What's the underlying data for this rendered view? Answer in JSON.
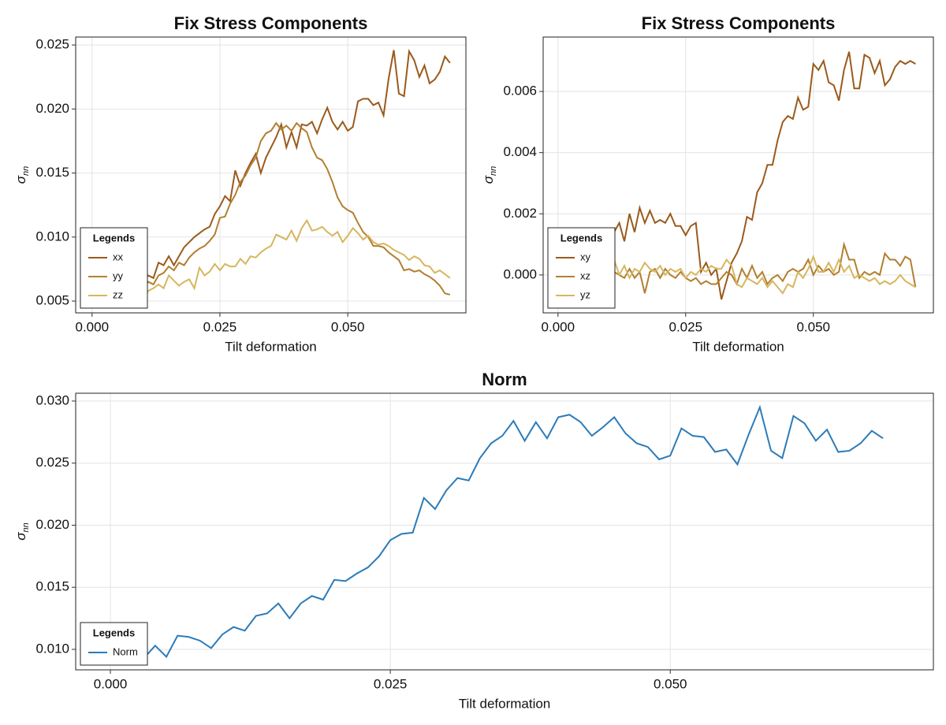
{
  "chart_data": [
    {
      "type": "line",
      "title": "Fix Stress Components",
      "xlabel": "Tilt deformation",
      "ylabel": {
        "symbol": "σ",
        "subscript": "nn"
      },
      "x": [
        0.008,
        0.009,
        0.01,
        0.011,
        0.012,
        0.013,
        0.014,
        0.015,
        0.016,
        0.017,
        0.018,
        0.019,
        0.02,
        0.021,
        0.022,
        0.023,
        0.024,
        0.025,
        0.026,
        0.027,
        0.028,
        0.029,
        0.03,
        0.031,
        0.032,
        0.033,
        0.034,
        0.035,
        0.036,
        0.037,
        0.038,
        0.039,
        0.04,
        0.041,
        0.042,
        0.043,
        0.044,
        0.045,
        0.046,
        0.047,
        0.048,
        0.049,
        0.05,
        0.051,
        0.052,
        0.053,
        0.054,
        0.055,
        0.056,
        0.057,
        0.058,
        0.059,
        0.06,
        0.061,
        0.062,
        0.063,
        0.064,
        0.065,
        0.066,
        0.067,
        0.068,
        0.069,
        0.07
      ],
      "series": [
        {
          "name": "xx",
          "color": "#9a5a1c",
          "values": [
            0.0062,
            0.0058,
            0.0066,
            0.007,
            0.0068,
            0.008,
            0.0078,
            0.0085,
            0.0078,
            0.0085,
            0.0092,
            0.0096,
            0.01,
            0.0103,
            0.0106,
            0.0108,
            0.0118,
            0.0124,
            0.0132,
            0.0128,
            0.0152,
            0.014,
            0.015,
            0.0158,
            0.0165,
            0.015,
            0.0162,
            0.017,
            0.0178,
            0.0188,
            0.017,
            0.0182,
            0.017,
            0.0188,
            0.0187,
            0.019,
            0.0181,
            0.0192,
            0.0201,
            0.019,
            0.0184,
            0.019,
            0.0183,
            0.0186,
            0.0206,
            0.0208,
            0.0208,
            0.0203,
            0.0205,
            0.0195,
            0.0224,
            0.0246,
            0.0212,
            0.021,
            0.0245,
            0.0238,
            0.0225,
            0.0234,
            0.022,
            0.0223,
            0.0229,
            0.0241,
            0.0236
          ]
        },
        {
          "name": "yy",
          "color": "#b27f30",
          "values": [
            0.006,
            0.0063,
            0.006,
            0.0065,
            0.0063,
            0.007,
            0.0072,
            0.0077,
            0.0074,
            0.008,
            0.0078,
            0.0084,
            0.0088,
            0.0091,
            0.0093,
            0.0097,
            0.0102,
            0.0115,
            0.0116,
            0.0126,
            0.0133,
            0.0143,
            0.0148,
            0.0156,
            0.0162,
            0.0175,
            0.0181,
            0.0183,
            0.0189,
            0.0184,
            0.0187,
            0.0183,
            0.0189,
            0.0185,
            0.0182,
            0.017,
            0.0162,
            0.016,
            0.0153,
            0.0143,
            0.0131,
            0.0124,
            0.0121,
            0.0119,
            0.0111,
            0.0104,
            0.01,
            0.0093,
            0.0093,
            0.0092,
            0.0088,
            0.0085,
            0.0082,
            0.0074,
            0.0075,
            0.0073,
            0.0074,
            0.0071,
            0.0069,
            0.0066,
            0.0062,
            0.0056,
            0.0055
          ]
        },
        {
          "name": "zz",
          "color": "#d6b75e",
          "values": [
            0.0063,
            0.0056,
            0.005,
            0.0058,
            0.006,
            0.0063,
            0.006,
            0.007,
            0.0066,
            0.0062,
            0.0065,
            0.0067,
            0.006,
            0.0076,
            0.007,
            0.0073,
            0.0079,
            0.0074,
            0.0079,
            0.0077,
            0.0077,
            0.0083,
            0.0079,
            0.0085,
            0.0084,
            0.0088,
            0.0091,
            0.0093,
            0.0102,
            0.01,
            0.0098,
            0.0105,
            0.0097,
            0.0107,
            0.0113,
            0.0105,
            0.0106,
            0.0108,
            0.0104,
            0.0101,
            0.0104,
            0.0096,
            0.0101,
            0.0107,
            0.0103,
            0.0098,
            0.0101,
            0.0096,
            0.0094,
            0.0095,
            0.0093,
            0.009,
            0.0088,
            0.0086,
            0.0082,
            0.0085,
            0.0083,
            0.0078,
            0.0077,
            0.0072,
            0.0074,
            0.0071,
            0.0068
          ]
        }
      ],
      "xlim": [
        -0.0032,
        0.0731
      ],
      "ylim": [
        0.00408,
        0.02562
      ],
      "xticks": [
        {
          "value": 0,
          "label": "0.000"
        },
        0.025,
        {
          "value": 0.05,
          "label": "0.050"
        }
      ],
      "yticks": [
        0.005,
        {
          "value": 0.01,
          "label": "0.010"
        },
        0.015,
        {
          "value": 0.02,
          "label": "0.020"
        },
        0.025
      ],
      "grid": true,
      "legend": {
        "title": "Legends",
        "position": "lower left"
      }
    },
    {
      "type": "line",
      "title": "Fix Stress Components",
      "xlabel": "Tilt deformation",
      "ylabel": {
        "symbol": "σ",
        "subscript": "nn"
      },
      "x": [
        0.008,
        0.009,
        0.01,
        0.011,
        0.012,
        0.013,
        0.014,
        0.015,
        0.016,
        0.017,
        0.018,
        0.019,
        0.02,
        0.021,
        0.022,
        0.023,
        0.024,
        0.025,
        0.026,
        0.027,
        0.028,
        0.029,
        0.03,
        0.031,
        0.032,
        0.033,
        0.034,
        0.035,
        0.036,
        0.037,
        0.038,
        0.039,
        0.04,
        0.041,
        0.042,
        0.043,
        0.044,
        0.045,
        0.046,
        0.047,
        0.048,
        0.049,
        0.05,
        0.051,
        0.052,
        0.053,
        0.054,
        0.055,
        0.056,
        0.057,
        0.058,
        0.059,
        0.06,
        0.061,
        0.062,
        0.063,
        0.064,
        0.065,
        0.066,
        0.067,
        0.068,
        0.069,
        0.07
      ],
      "series": [
        {
          "name": "xy",
          "color": "#9a5a1c",
          "values": [
            0.001,
            0.0012,
            0.0012,
            0.0014,
            0.0017,
            0.0011,
            0.002,
            0.0014,
            0.0022,
            0.0017,
            0.0021,
            0.0017,
            0.0018,
            0.0017,
            0.002,
            0.0016,
            0.0016,
            0.0013,
            0.0016,
            0.0017,
            0.0001,
            0.0004,
            0.0,
            0.0002,
            -0.0008,
            -0.0002,
            0.0004,
            0.0007,
            0.0011,
            0.0019,
            0.0018,
            0.0027,
            0.003,
            0.0036,
            0.0036,
            0.0044,
            0.005,
            0.0052,
            0.0051,
            0.0058,
            0.0054,
            0.0055,
            0.0069,
            0.0067,
            0.007,
            0.0063,
            0.0062,
            0.0057,
            0.0067,
            0.0073,
            0.0061,
            0.0061,
            0.0072,
            0.0071,
            0.0066,
            0.007,
            0.0062,
            0.0064,
            0.0068,
            0.007,
            0.0069,
            0.007,
            0.0069
          ]
        },
        {
          "name": "xz",
          "color": "#b27f30",
          "values": [
            0.0001,
            -0.0001,
            0.0001,
            0.0001,
            0.0,
            -0.0001,
            0.0002,
            -0.0001,
            0.0001,
            -0.0006,
            0.0001,
            0.0002,
            -0.0001,
            0.0002,
            0.0,
            -0.0001,
            0.0001,
            -0.0001,
            -0.0002,
            -0.0001,
            -0.0003,
            -0.0002,
            -0.0003,
            -0.0003,
            -0.0001,
            0.0001,
            0.0,
            -0.0003,
            0.0002,
            -0.0001,
            0.0003,
            -0.0001,
            0.0001,
            -0.0003,
            -0.0001,
            0.0,
            -0.0002,
            0.0001,
            0.0002,
            0.0001,
            0.0002,
            0.0005,
            0.0,
            0.0003,
            0.0001,
            0.0002,
            0.0,
            0.0001,
            0.001,
            0.0005,
            0.0005,
            -0.0001,
            0.0001,
            0.0,
            0.0001,
            0.0,
            0.0007,
            0.0005,
            0.0005,
            0.0003,
            0.0006,
            0.0005,
            -0.0004
          ]
        },
        {
          "name": "yz",
          "color": "#d6b75e",
          "values": [
            -0.0001,
            0.0,
            0.0001,
            0.0005,
            0.0,
            0.0003,
            -0.0001,
            0.0002,
            0.0001,
            0.0004,
            0.0002,
            0.0001,
            0.0003,
            0.0,
            0.0002,
            0.0001,
            0.0002,
            -0.0001,
            0.0001,
            0.0,
            0.0002,
            0.0001,
            0.0003,
            0.0002,
            0.0002,
            0.0005,
            0.0003,
            -0.0003,
            -0.0004,
            -0.0001,
            -0.0002,
            -0.0003,
            -0.0001,
            -0.0004,
            -0.0002,
            -0.0004,
            -0.0006,
            -0.0003,
            -0.0004,
            0.0001,
            -0.0001,
            0.0002,
            0.0006,
            0.0001,
            0.0001,
            0.0004,
            0.0001,
            0.0005,
            0.0001,
            0.0003,
            -0.0001,
            0.0,
            -0.0001,
            -0.0002,
            -0.0001,
            -0.0003,
            -0.0002,
            -0.0003,
            -0.0002,
            0.0,
            -0.0002,
            -0.0003,
            -0.0004
          ]
        }
      ],
      "xlim": [
        -0.0029,
        0.0735
      ],
      "ylim": [
        -0.00124,
        0.00778
      ],
      "xticks": [
        {
          "value": 0,
          "label": "0.000"
        },
        0.025,
        {
          "value": 0.05,
          "label": "0.050"
        }
      ],
      "yticks": [
        {
          "value": 0,
          "label": "0.000"
        },
        0.002,
        0.004,
        0.006
      ],
      "grid": true,
      "legend": {
        "title": "Legends",
        "position": "lower left"
      }
    },
    {
      "type": "line",
      "title": "Norm",
      "xlabel": "Tilt deformation",
      "ylabel": {
        "symbol": "σ",
        "subscript": "nn"
      },
      "x": [
        0.0,
        0.001,
        0.002,
        0.003,
        0.004,
        0.005,
        0.006,
        0.007,
        0.008,
        0.009,
        0.01,
        0.011,
        0.012,
        0.013,
        0.014,
        0.015,
        0.016,
        0.017,
        0.018,
        0.019,
        0.02,
        0.021,
        0.022,
        0.023,
        0.024,
        0.025,
        0.026,
        0.027,
        0.028,
        0.029,
        0.03,
        0.031,
        0.032,
        0.033,
        0.034,
        0.035,
        0.036,
        0.037,
        0.038,
        0.039,
        0.04,
        0.041,
        0.042,
        0.043,
        0.044,
        0.045,
        0.046,
        0.047,
        0.048,
        0.049,
        0.05,
        0.051,
        0.052,
        0.053,
        0.054,
        0.055,
        0.056,
        0.057,
        0.058,
        0.059,
        0.06,
        0.061,
        0.062,
        0.063,
        0.064,
        0.065,
        0.066,
        0.067,
        0.068,
        0.069
      ],
      "series": [
        {
          "name": "Norm",
          "color": "#2b7bb9",
          "values": [
            0.0093,
            0.0093,
            0.0093,
            0.0093,
            0.0103,
            0.0094,
            0.0111,
            0.011,
            0.0107,
            0.0101,
            0.0112,
            0.0118,
            0.0115,
            0.0127,
            0.0129,
            0.0137,
            0.0125,
            0.0137,
            0.0143,
            0.014,
            0.0156,
            0.0155,
            0.0161,
            0.0166,
            0.0175,
            0.0188,
            0.0193,
            0.0194,
            0.0222,
            0.0213,
            0.0228,
            0.0238,
            0.0236,
            0.0254,
            0.0266,
            0.0272,
            0.0284,
            0.0268,
            0.0283,
            0.027,
            0.0287,
            0.0289,
            0.0283,
            0.0272,
            0.0279,
            0.0287,
            0.0274,
            0.0266,
            0.0263,
            0.0253,
            0.0256,
            0.0278,
            0.0272,
            0.0271,
            0.0259,
            0.0261,
            0.0249,
            0.0273,
            0.0295,
            0.026,
            0.0254,
            0.0288,
            0.0282,
            0.0268,
            0.0277,
            0.0259,
            0.026,
            0.0266,
            0.0276,
            0.027
          ]
        }
      ],
      "xlim": [
        -0.0031,
        0.0735
      ],
      "ylim": [
        0.00835,
        0.03063
      ],
      "xticks": [
        {
          "value": 0,
          "label": "0.000"
        },
        0.025,
        {
          "value": 0.05,
          "label": "0.050"
        }
      ],
      "yticks": [
        {
          "value": 0.01,
          "label": "0.010"
        },
        0.015,
        {
          "value": 0.02,
          "label": "0.020"
        },
        0.025,
        {
          "value": 0.03,
          "label": "0.030"
        }
      ],
      "grid": true,
      "legend": {
        "title": "Legends",
        "position": "lower left"
      }
    }
  ]
}
